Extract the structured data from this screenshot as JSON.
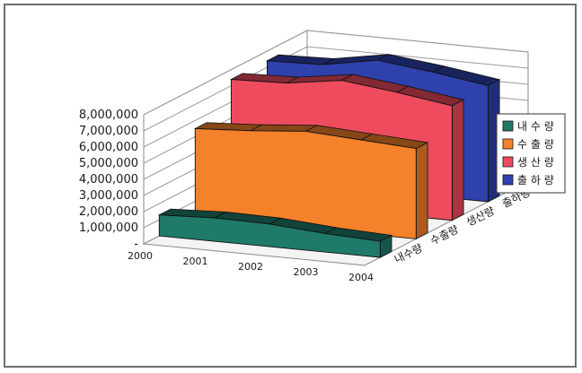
{
  "chart_data": {
    "type": "area",
    "view": "3d",
    "categories": [
      "2000",
      "2001",
      "2002",
      "2003",
      "2004"
    ],
    "series": [
      {
        "name": "내수량",
        "legend_label": "내 수 량",
        "color": "#1f7a6a",
        "values": [
          1300000,
          1450000,
          1400000,
          1150000,
          1000000
        ]
      },
      {
        "name": "수출량",
        "legend_label": "수 출 량",
        "color": "#f5812a",
        "values": [
          5500000,
          5700000,
          6000000,
          5800000,
          5600000
        ]
      },
      {
        "name": "생산량",
        "legend_label": "생 산 량",
        "color": "#ee4b5e",
        "values": [
          7400000,
          7500000,
          8000000,
          7600000,
          7100000
        ]
      },
      {
        "name": "출하량",
        "legend_label": "출 하 량",
        "color": "#2e41ad",
        "values": [
          7400000,
          7500000,
          8100000,
          7700000,
          7200000
        ]
      }
    ],
    "y_ticks": [
      "-",
      "1,000,000",
      "2,000,000",
      "3,000,000",
      "4,000,000",
      "5,000,000",
      "6,000,000",
      "7,000,000",
      "8,000,000"
    ],
    "ylim": [
      0,
      8000000
    ],
    "grid": true,
    "legend_position": "right"
  }
}
